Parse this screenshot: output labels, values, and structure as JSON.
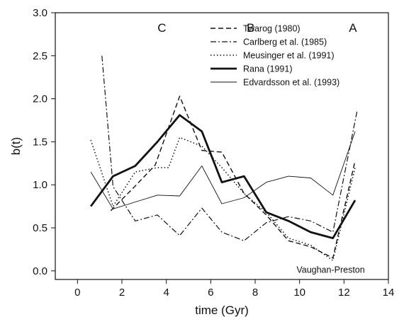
{
  "chart_data": {
    "type": "line",
    "xlabel": "time (Gyr)",
    "ylabel": "b(t)",
    "xlim": [
      -1,
      14
    ],
    "ylim": [
      -0.1,
      3.0
    ],
    "x_ticks": [
      0,
      2,
      4,
      6,
      8,
      10,
      12,
      14
    ],
    "y_ticks": [
      0.0,
      0.5,
      1.0,
      1.5,
      2.0,
      2.5,
      3.0
    ],
    "x_tick_labels": [
      "0",
      "2",
      "4",
      "6",
      "8",
      "10",
      "12",
      "14"
    ],
    "y_tick_labels": [
      "0.0",
      "0.5",
      "1.0",
      "1.5",
      "2.0",
      "2.5",
      "3.0"
    ],
    "grid": false,
    "legend_position": "top-right",
    "annotations": [
      {
        "text": "C",
        "x": 3.8,
        "y": 2.78
      },
      {
        "text": "B",
        "x": 7.8,
        "y": 2.78
      },
      {
        "text": "A",
        "x": 12.4,
        "y": 2.78
      },
      {
        "text": "Vaughan-Preston",
        "x": 11.4,
        "y": -0.02
      }
    ],
    "series": [
      {
        "name": "Twarog (1980)",
        "color": "#111111",
        "style": "dashed",
        "width": 1.4,
        "x": [
          1.5,
          2.5,
          3.5,
          4.6,
          5.6,
          6.5,
          7.5,
          8.5,
          9.5,
          10.5,
          11.5,
          12.5
        ],
        "y": [
          0.7,
          0.96,
          1.23,
          2.03,
          1.4,
          1.38,
          0.9,
          0.65,
          0.35,
          0.28,
          0.15,
          1.28
        ]
      },
      {
        "name": "Carlberg et al. (1985)",
        "color": "#111111",
        "style": "dashdot",
        "width": 1.2,
        "x": [
          1.1,
          1.6,
          2.6,
          3.6,
          4.6,
          5.6,
          6.5,
          7.5,
          8.5,
          9.5,
          10.5,
          11.5,
          12.6
        ],
        "y": [
          2.5,
          0.98,
          0.58,
          0.65,
          0.41,
          0.73,
          0.45,
          0.35,
          0.56,
          0.63,
          0.58,
          0.45,
          1.87
        ]
      },
      {
        "name": "Meusinger et al. (1991)",
        "color": "#111111",
        "style": "dotted",
        "width": 1.5,
        "x": [
          0.6,
          1.6,
          2.6,
          3.6,
          4.1,
          4.6,
          5.6,
          6.5,
          7.5,
          8.5,
          9.5,
          10.5,
          11.5,
          12.5
        ],
        "y": [
          1.52,
          0.75,
          1.15,
          1.2,
          1.2,
          1.55,
          1.45,
          1.2,
          0.9,
          0.68,
          0.38,
          0.3,
          0.12,
          1.2
        ]
      },
      {
        "name": "Rana (1991)",
        "color": "#111111",
        "style": "solid",
        "width": 2.8,
        "x": [
          0.6,
          1.6,
          2.6,
          3.6,
          4.6,
          5.6,
          6.5,
          7.5,
          8.5,
          9.5,
          10.5,
          11.5,
          12.5
        ],
        "y": [
          0.75,
          1.1,
          1.22,
          1.5,
          1.81,
          1.62,
          1.03,
          1.1,
          0.68,
          0.58,
          0.45,
          0.38,
          0.82
        ]
      },
      {
        "name": "Edvardsson et al. (1993)",
        "color": "#111111",
        "style": "solid",
        "width": 0.9,
        "x": [
          0.6,
          1.6,
          2.6,
          3.6,
          4.6,
          5.6,
          6.5,
          7.5,
          8.5,
          9.5,
          10.5,
          11.5,
          12.5
        ],
        "y": [
          1.15,
          0.72,
          0.8,
          0.88,
          0.87,
          1.22,
          0.78,
          0.85,
          1.03,
          1.1,
          1.08,
          0.88,
          1.62
        ]
      }
    ]
  }
}
